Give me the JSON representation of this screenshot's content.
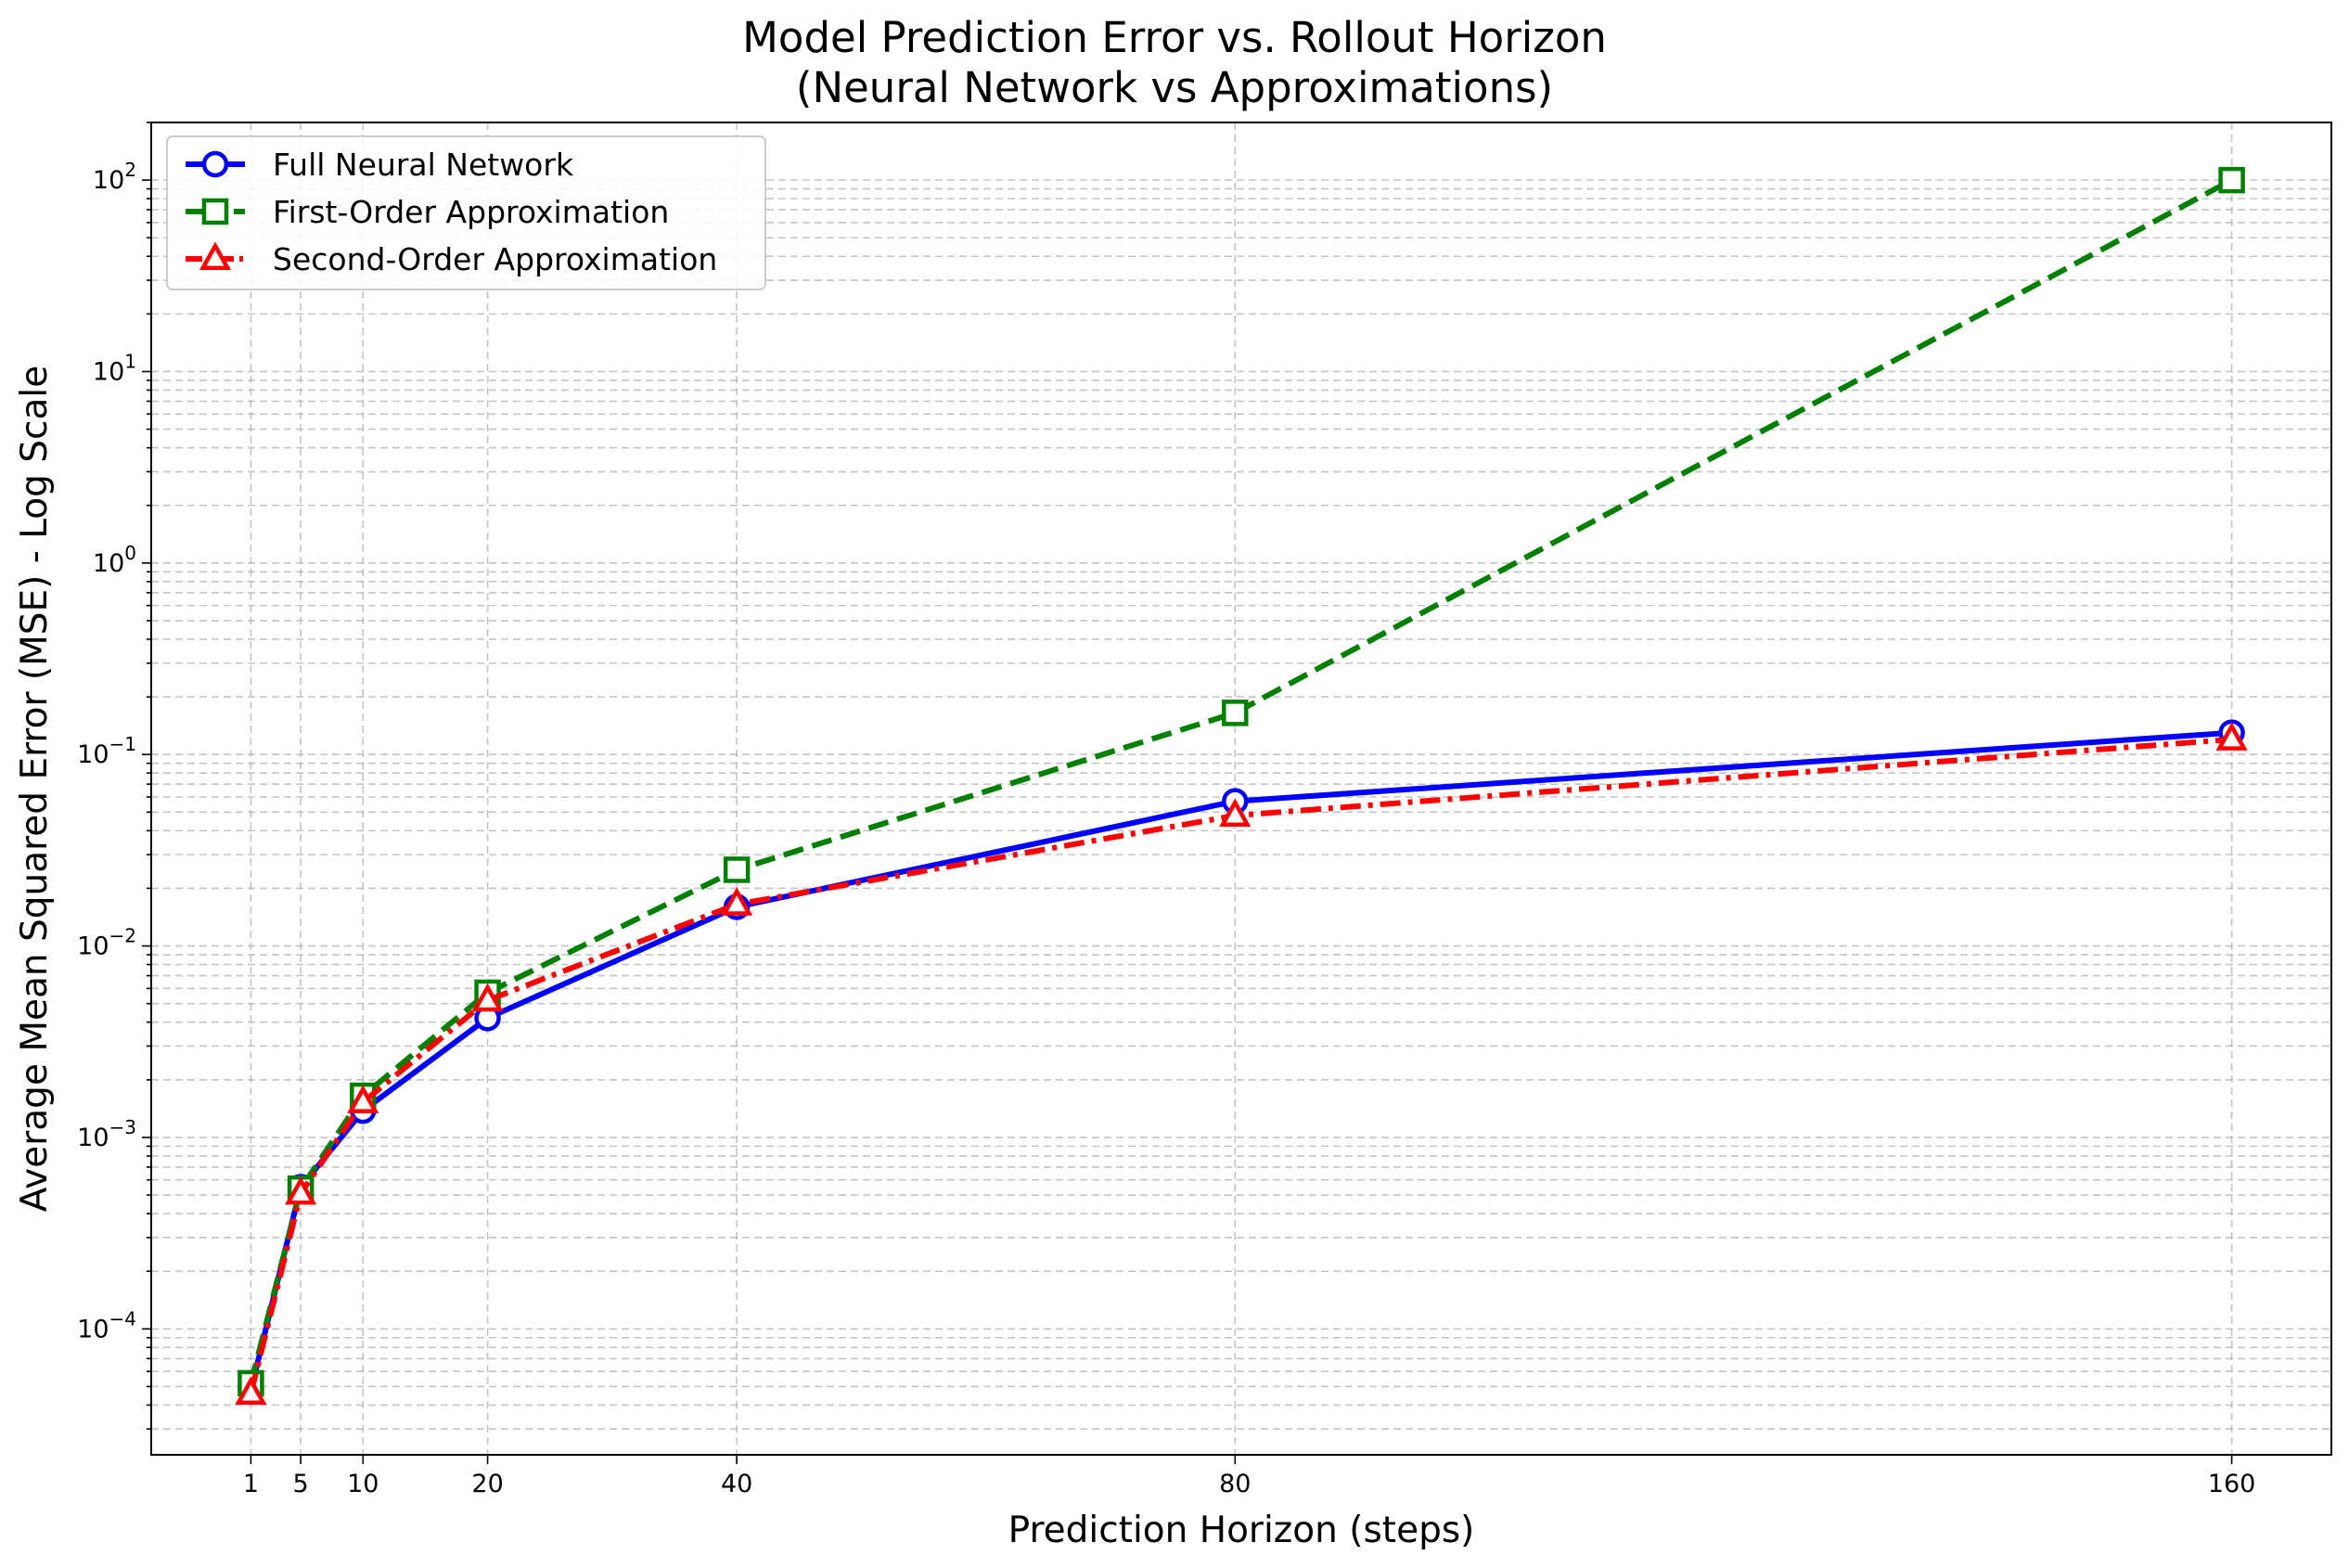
{
  "chart_data": {
    "type": "line",
    "title": "Model Prediction Error vs. Rollout Horizon",
    "subtitle": "(Neural Network vs Approximations)",
    "xlabel": "Prediction Horizon (steps)",
    "ylabel": "Average Mean Squared Error (MSE) - Log Scale",
    "x": [
      1,
      5,
      10,
      20,
      40,
      80,
      160
    ],
    "xticks": [
      "1",
      "5",
      "10",
      "20",
      "40",
      "80",
      "160"
    ],
    "xlim": [
      -7,
      168
    ],
    "yscale": "log",
    "ylim": [
      2.2e-05,
      200
    ],
    "yticks": [
      {
        "base": "10",
        "exp": "−4",
        "value": 0.0001
      },
      {
        "base": "10",
        "exp": "−3",
        "value": 0.001
      },
      {
        "base": "10",
        "exp": "−2",
        "value": 0.01
      },
      {
        "base": "10",
        "exp": "−1",
        "value": 0.1
      },
      {
        "base": "10",
        "exp": "0",
        "value": 1
      },
      {
        "base": "10",
        "exp": "1",
        "value": 10
      },
      {
        "base": "10",
        "exp": "2",
        "value": 100
      }
    ],
    "grid": true,
    "legend_position": "top-left",
    "series": [
      {
        "name": "Full Neural Network",
        "color": "#0000ff",
        "marker": "circle",
        "linestyle": "solid",
        "values": [
          4.8e-05,
          0.00055,
          0.00138,
          0.0042,
          0.016,
          0.057,
          0.13
        ]
      },
      {
        "name": "First-Order Approximation",
        "color": "#008000",
        "marker": "square",
        "linestyle": "dashed",
        "values": [
          5.2e-05,
          0.00054,
          0.00165,
          0.0057,
          0.025,
          0.165,
          100
        ]
      },
      {
        "name": "Second-Order Approximation",
        "color": "#ff0000",
        "marker": "triangle",
        "linestyle": "dashdot",
        "values": [
          4.6e-05,
          0.00051,
          0.00153,
          0.0052,
          0.0165,
          0.048,
          0.12
        ]
      }
    ]
  }
}
